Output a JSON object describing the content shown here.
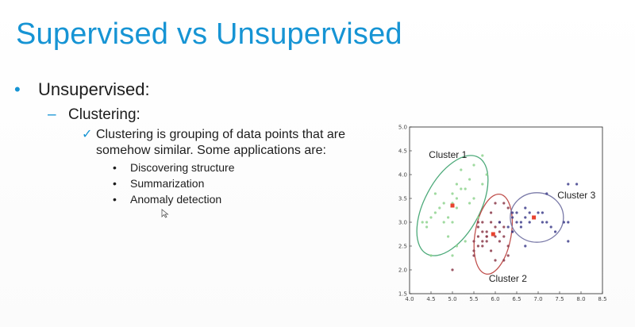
{
  "slide": {
    "title": "Supervised vs Unsupervised",
    "bullet_1": "Unsupervised:",
    "bullet_2": "Clustering:",
    "bullet_3": "Clustering is grouping of data points that are somehow similar. Some applications are:",
    "sub_bullets": [
      "Discovering structure",
      "Summarization",
      "Anomaly detection"
    ],
    "colors": {
      "title": "#1694d4",
      "accent": "#1694d4"
    },
    "icons": {
      "bullet_1": "disc-bullet-icon",
      "bullet_2": "dash-bullet-icon",
      "bullet_3": "checkmark-icon",
      "sub": "dot-bullet-icon",
      "pointer": "mouse-cursor-icon"
    }
  },
  "chart_data": {
    "type": "scatter",
    "xlim": [
      4.0,
      8.5
    ],
    "ylim": [
      1.5,
      5.0
    ],
    "x_ticks": [
      "4.0",
      "4.5",
      "5.0",
      "5.5",
      "6.0",
      "6.5",
      "7.0",
      "7.5",
      "8.0",
      "8.5"
    ],
    "y_ticks": [
      "1.5",
      "2.0",
      "2.5",
      "3.0",
      "3.5",
      "4.0",
      "4.5",
      "5.0"
    ],
    "grid": false,
    "clusters": [
      {
        "name": "Cluster 1",
        "color": "#8fd48f",
        "ellipse_color": "#4daa7a",
        "centroid": [
          5.0,
          3.35
        ],
        "points": [
          [
            4.4,
            2.9
          ],
          [
            4.5,
            3.1
          ],
          [
            4.6,
            3.2
          ],
          [
            4.4,
            3.0
          ],
          [
            4.7,
            3.3
          ],
          [
            4.8,
            3.4
          ],
          [
            4.9,
            3.1
          ],
          [
            5.0,
            3.6
          ],
          [
            5.1,
            3.5
          ],
          [
            5.0,
            3.4
          ],
          [
            5.2,
            3.7
          ],
          [
            5.4,
            3.9
          ],
          [
            5.7,
            4.4
          ],
          [
            5.8,
            4.0
          ],
          [
            5.5,
            4.2
          ],
          [
            5.1,
            3.8
          ],
          [
            5.3,
            3.7
          ],
          [
            5.1,
            3.3
          ],
          [
            4.8,
            3.0
          ],
          [
            4.6,
            3.6
          ],
          [
            5.4,
            3.4
          ],
          [
            5.2,
            4.1
          ],
          [
            5.7,
            3.8
          ],
          [
            5.5,
            3.5
          ],
          [
            4.9,
            2.7
          ],
          [
            5.0,
            3.0
          ],
          [
            4.3,
            3.0
          ],
          [
            5.1,
            2.5
          ],
          [
            4.5,
            2.3
          ],
          [
            5.3,
            2.6
          ],
          [
            5.0,
            2.3
          ],
          [
            5.6,
            3.1
          ]
        ]
      },
      {
        "name": "Cluster 2",
        "color": "#8b3a4a",
        "ellipse_color": "#c0504d",
        "centroid": [
          5.95,
          2.75
        ],
        "points": [
          [
            5.6,
            2.9
          ],
          [
            5.7,
            2.8
          ],
          [
            5.8,
            2.7
          ],
          [
            5.9,
            3.0
          ],
          [
            6.0,
            2.9
          ],
          [
            6.1,
            2.8
          ],
          [
            6.2,
            2.9
          ],
          [
            6.3,
            2.5
          ],
          [
            5.6,
            2.5
          ],
          [
            5.7,
            2.6
          ],
          [
            5.8,
            2.7
          ],
          [
            5.9,
            3.2
          ],
          [
            6.0,
            2.2
          ],
          [
            6.1,
            3.0
          ],
          [
            6.2,
            2.2
          ],
          [
            6.3,
            2.3
          ],
          [
            5.5,
            2.4
          ],
          [
            5.5,
            2.6
          ],
          [
            5.6,
            3.0
          ],
          [
            5.7,
            3.0
          ],
          [
            5.8,
            2.8
          ],
          [
            6.0,
            3.4
          ],
          [
            6.4,
            2.8
          ],
          [
            6.1,
            2.6
          ],
          [
            5.7,
            2.5
          ],
          [
            6.2,
            3.4
          ],
          [
            6.3,
            3.3
          ],
          [
            5.5,
            2.3
          ],
          [
            5.6,
            2.7
          ],
          [
            6.0,
            2.7
          ],
          [
            5.9,
            2.4
          ],
          [
            5.0,
            2.0
          ],
          [
            6.2,
            2.7
          ],
          [
            5.8,
            2.6
          ]
        ]
      },
      {
        "name": "Cluster 3",
        "color": "#3f3f8c",
        "ellipse_color": "#7a7aa8",
        "centroid": [
          6.9,
          3.1
        ],
        "points": [
          [
            6.4,
            3.2
          ],
          [
            6.5,
            3.0
          ],
          [
            6.6,
            3.0
          ],
          [
            6.7,
            3.1
          ],
          [
            6.8,
            3.0
          ],
          [
            6.9,
            3.1
          ],
          [
            7.0,
            3.2
          ],
          [
            7.1,
            3.0
          ],
          [
            7.2,
            3.6
          ],
          [
            7.3,
            2.9
          ],
          [
            7.6,
            3.0
          ],
          [
            7.7,
            3.8
          ],
          [
            7.7,
            2.6
          ],
          [
            7.9,
            3.8
          ],
          [
            6.7,
            3.3
          ],
          [
            6.4,
            2.8
          ],
          [
            6.5,
            3.2
          ],
          [
            6.3,
            2.9
          ],
          [
            6.7,
            2.5
          ],
          [
            6.9,
            3.1
          ],
          [
            7.2,
            3.0
          ],
          [
            6.8,
            3.2
          ],
          [
            6.4,
            3.1
          ],
          [
            6.6,
            2.9
          ],
          [
            7.4,
            2.8
          ],
          [
            7.7,
            3.0
          ],
          [
            6.1,
            3.0
          ],
          [
            7.1,
            3.2
          ]
        ]
      }
    ]
  }
}
